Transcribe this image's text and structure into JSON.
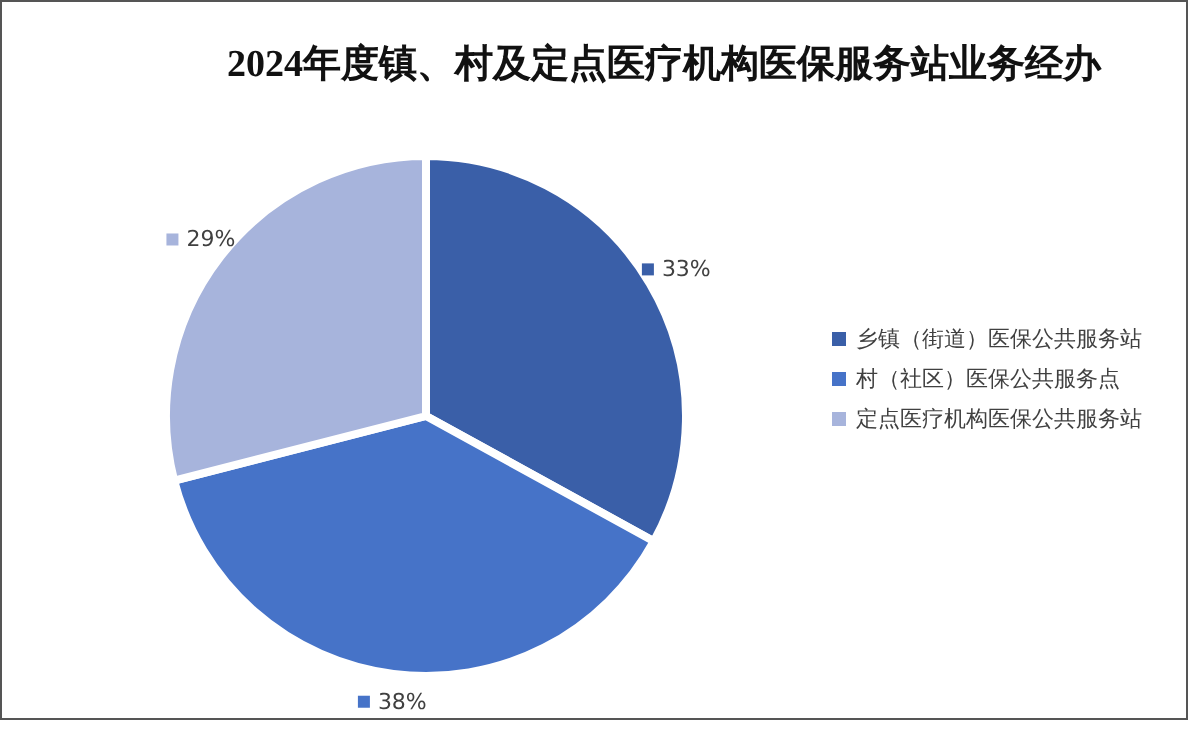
{
  "chart_data": {
    "type": "pie",
    "title": "2024年度镇、村及定点医疗机构医保服务站业务经办",
    "categories": [
      "乡镇（街道）医保公共服务站",
      "村（社区）医保公共服务点",
      "定点医疗机构医保公共服务站"
    ],
    "values": [
      33,
      38,
      29
    ],
    "colors": [
      "#3a5fa8",
      "#4673c8",
      "#a7b4dc"
    ],
    "value_labels": [
      "33%",
      "38%",
      "29%"
    ],
    "legend": "right"
  }
}
